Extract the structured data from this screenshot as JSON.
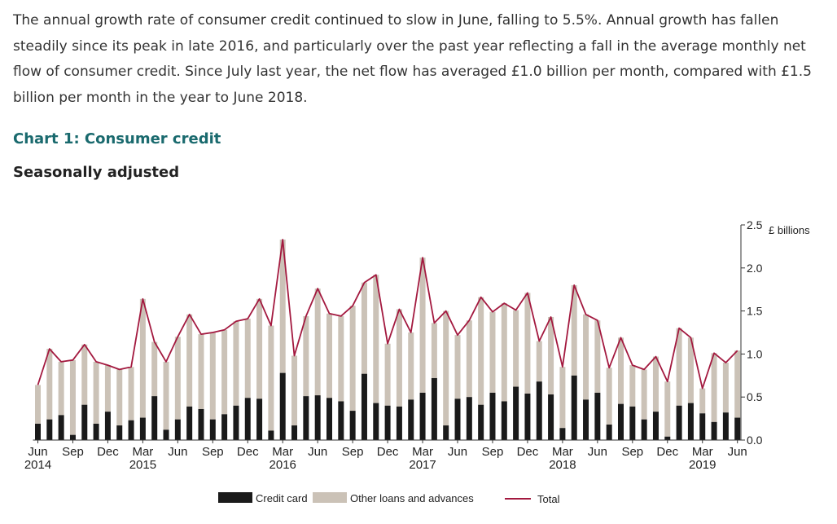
{
  "intro": "The annual growth rate of consumer credit continued to slow in June, falling to 5.5%. Annual growth has fallen steadily since its peak in late 2016, and particularly over the past year reflecting a fall in the average monthly net flow of consumer credit. Since July last year, the net flow has averaged £1.0 billion per month, compared with £1.5 billion per month in the year to June 2018.",
  "chart_title": "Chart 1: Consumer credit",
  "chart_subtitle": "Seasonally adjusted",
  "colors": {
    "credit_card": "#1a1a1a",
    "other_loans": "#cbc2b7",
    "total": "#a3193f",
    "title": "#1a6a6e"
  },
  "chart_data": {
    "type": "bar",
    "stacked": true,
    "unit": "£ billions",
    "ylim": [
      0,
      2.5
    ],
    "yticks": [
      "0.0",
      "0.5",
      "1.0",
      "1.5",
      "2.0",
      "2.5"
    ],
    "y_axis_side": "right",
    "x_tick_labels": [
      "Jun",
      "Sep",
      "Dec",
      "Mar",
      "Jun",
      "Sep",
      "Dec",
      "Mar",
      "Jun",
      "Sep",
      "Dec",
      "Mar",
      "Jun",
      "Sep",
      "Dec",
      "Mar",
      "Jun",
      "Sep",
      "Dec",
      "Mar",
      "Jun"
    ],
    "x_year_labels": [
      {
        "label": "2014",
        "month_index": 0
      },
      {
        "label": "2015",
        "month_index": 9
      },
      {
        "label": "2016",
        "month_index": 21
      },
      {
        "label": "2017",
        "month_index": 33
      },
      {
        "label": "2018",
        "month_index": 45
      },
      {
        "label": "2019",
        "month_index": 57
      }
    ],
    "legend_position": "bottom",
    "series": [
      {
        "name": "Credit card",
        "type": "bar",
        "values": [
          0.19,
          0.24,
          0.29,
          0.06,
          0.41,
          0.19,
          0.33,
          0.17,
          0.23,
          0.26,
          0.51,
          0.12,
          0.24,
          0.39,
          0.36,
          0.24,
          0.3,
          0.4,
          0.49,
          0.48,
          0.11,
          0.78,
          0.17,
          0.51,
          0.52,
          0.49,
          0.45,
          0.34,
          0.77,
          0.43,
          0.4,
          0.39,
          0.47,
          0.55,
          0.72,
          0.17,
          0.48,
          0.5,
          0.41,
          0.55,
          0.45,
          0.62,
          0.54,
          0.68,
          0.53,
          0.14,
          0.75,
          0.47,
          0.55,
          0.18,
          0.42,
          0.39,
          0.24,
          0.33,
          0.04,
          0.4,
          0.43,
          0.31,
          0.21,
          0.32,
          0.26
        ]
      },
      {
        "name": "Other loans and advances",
        "type": "bar",
        "values": [
          0.45,
          0.82,
          0.62,
          0.87,
          0.7,
          0.72,
          0.54,
          0.65,
          0.62,
          1.38,
          0.63,
          0.79,
          0.96,
          1.07,
          0.87,
          1.01,
          0.98,
          0.98,
          0.92,
          1.16,
          1.22,
          1.55,
          0.81,
          0.93,
          1.24,
          0.98,
          0.99,
          1.22,
          1.06,
          1.49,
          0.72,
          1.13,
          0.78,
          1.57,
          0.64,
          1.33,
          0.74,
          0.89,
          1.25,
          0.94,
          1.14,
          0.89,
          1.17,
          0.47,
          0.9,
          0.71,
          1.05,
          0.99,
          0.84,
          0.66,
          0.77,
          0.48,
          0.58,
          0.64,
          0.64,
          0.9,
          0.76,
          0.29,
          0.8,
          0.58,
          0.78
        ]
      },
      {
        "name": "Total",
        "type": "line",
        "values": [
          0.64,
          1.06,
          0.91,
          0.93,
          1.11,
          0.91,
          0.87,
          0.82,
          0.85,
          1.64,
          1.14,
          0.91,
          1.2,
          1.46,
          1.23,
          1.25,
          1.28,
          1.38,
          1.41,
          1.64,
          1.33,
          2.33,
          0.98,
          1.44,
          1.76,
          1.47,
          1.44,
          1.56,
          1.83,
          1.92,
          1.12,
          1.52,
          1.25,
          2.12,
          1.36,
          1.5,
          1.22,
          1.39,
          1.66,
          1.49,
          1.59,
          1.51,
          1.71,
          1.15,
          1.43,
          0.85,
          1.8,
          1.46,
          1.39,
          0.84,
          1.19,
          0.87,
          0.82,
          0.97,
          0.68,
          1.3,
          1.19,
          0.6,
          1.01,
          0.9,
          1.04
        ]
      }
    ]
  }
}
